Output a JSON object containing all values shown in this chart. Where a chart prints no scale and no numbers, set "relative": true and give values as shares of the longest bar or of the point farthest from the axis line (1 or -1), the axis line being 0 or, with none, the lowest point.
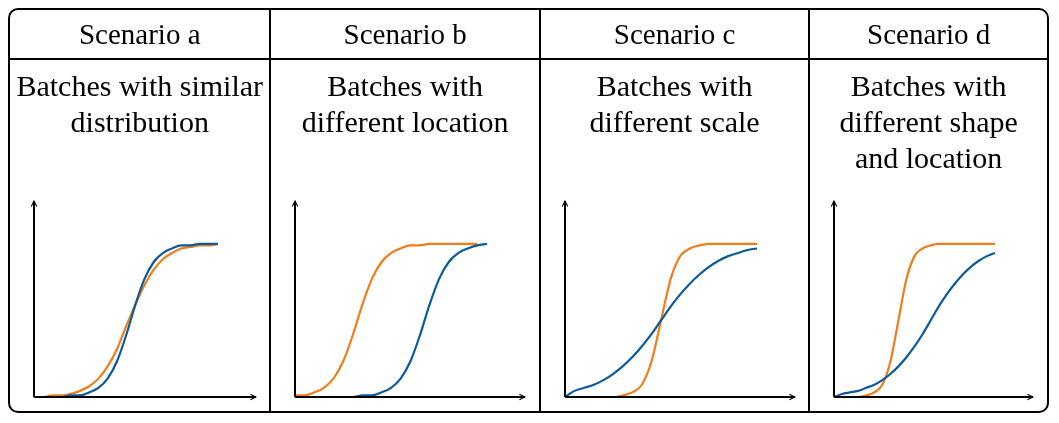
{
  "chart_data": [
    {
      "type": "line",
      "title": "Scenario a",
      "subtitle": "Batches with similar distribution",
      "relative": true,
      "marker": "none",
      "line_style": "solid",
      "categories": [
        null,
        null,
        null,
        null,
        null,
        null,
        null,
        null,
        null,
        null,
        null,
        null,
        null,
        null,
        null,
        null,
        null,
        null,
        null,
        null,
        null
      ],
      "series": [
        {
          "color": "#f07d1a",
          "values": [
            0,
            0,
            0.01,
            0.01,
            0.02,
            0.04,
            0.07,
            0.12,
            0.2,
            0.31,
            0.46,
            0.6,
            0.73,
            0.83,
            0.9,
            0.94,
            0.97,
            0.98,
            0.99,
            0.99,
            1
          ]
        },
        {
          "color": "#0b5a9c",
          "values": [
            null,
            null,
            0,
            0,
            0.01,
            0.01,
            0.03,
            0.06,
            0.12,
            0.23,
            0.4,
            0.6,
            0.77,
            0.88,
            0.94,
            0.97,
            0.99,
            0.99,
            1,
            1,
            1
          ]
        }
      ]
    },
    {
      "type": "line",
      "title": "Scenario b",
      "subtitle": "Batches with different location",
      "relative": true,
      "marker": "none",
      "line_style": "solid",
      "categories": [
        null,
        null,
        null,
        null,
        null,
        null,
        null,
        null,
        null,
        null,
        null,
        null,
        null,
        null,
        null,
        null,
        null,
        null,
        null,
        null,
        null
      ],
      "series": [
        {
          "color": "#f07d1a",
          "values": [
            0.01,
            0.01,
            0.03,
            0.06,
            0.12,
            0.23,
            0.4,
            0.6,
            0.77,
            0.88,
            0.94,
            0.97,
            0.99,
            0.99,
            1,
            1,
            1,
            1,
            1,
            1,
            null
          ]
        },
        {
          "color": "#0b5a9c",
          "values": [
            null,
            null,
            null,
            null,
            null,
            0,
            0,
            0.01,
            0.01,
            0.03,
            0.06,
            0.12,
            0.23,
            0.4,
            0.6,
            0.77,
            0.88,
            0.94,
            0.97,
            0.99,
            1
          ]
        }
      ]
    },
    {
      "type": "line",
      "title": "Scenario c",
      "subtitle": "Batches with different scale",
      "relative": true,
      "marker": "none",
      "line_style": "solid",
      "categories": [
        null,
        null,
        null,
        null,
        null,
        null,
        null,
        null,
        null,
        null,
        null,
        null,
        null,
        null,
        null,
        null,
        null,
        null,
        null,
        null,
        null
      ],
      "series": [
        {
          "color": "#f07d1a",
          "values": [
            null,
            null,
            null,
            null,
            0,
            0,
            0.01,
            0.03,
            0.08,
            0.23,
            0.5,
            0.77,
            0.92,
            0.97,
            0.99,
            1,
            1,
            1,
            1,
            1,
            1
          ]
        },
        {
          "color": "#0b5a9c",
          "values": [
            0,
            0.04,
            0.06,
            0.08,
            0.11,
            0.15,
            0.2,
            0.26,
            0.33,
            0.41,
            0.5,
            0.59,
            0.67,
            0.74,
            0.8,
            0.85,
            0.89,
            0.92,
            0.94,
            0.96,
            0.97
          ]
        }
      ]
    },
    {
      "type": "line",
      "title": "Scenario d",
      "subtitle": "Batches with different shape and location",
      "relative": true,
      "marker": "none",
      "line_style": "solid",
      "categories": [
        null,
        null,
        null,
        null,
        null,
        null,
        null,
        null,
        null,
        null,
        null,
        null,
        null,
        null,
        null,
        null,
        null,
        null,
        null,
        null,
        null
      ],
      "series": [
        {
          "color": "#f07d1a",
          "values": [
            null,
            null,
            0,
            0,
            0.01,
            0.03,
            0.08,
            0.23,
            0.5,
            0.77,
            0.92,
            0.97,
            0.99,
            1,
            1,
            1,
            1,
            1,
            1,
            1,
            1
          ]
        },
        {
          "color": "#0b5a9c",
          "values": [
            0,
            0.02,
            0.03,
            0.04,
            0.06,
            0.08,
            0.11,
            0.15,
            0.2,
            0.26,
            0.33,
            0.41,
            0.5,
            0.59,
            0.67,
            0.74,
            0.8,
            0.85,
            0.89,
            0.92,
            0.94
          ]
        }
      ]
    }
  ]
}
